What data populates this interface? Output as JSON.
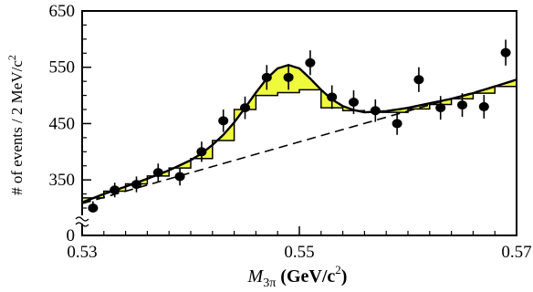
{
  "chart_data": {
    "type": "scatter",
    "xlim": [
      0.53,
      0.57
    ],
    "y_axis": {
      "break": true,
      "break_value": 300,
      "upper_range": [
        300,
        650
      ],
      "tick_values": [
        0,
        350,
        450,
        550,
        650
      ],
      "tick_labels": [
        "0",
        "350",
        "450",
        "550",
        "650"
      ]
    },
    "x_ticks": [
      0.53,
      0.55,
      0.57
    ],
    "x_tick_labels": [
      "0.53",
      "0.55",
      "0.57"
    ],
    "xlabel_main": "M",
    "xlabel_sub": "3π",
    "xlabel_unit": " (GeV/c",
    "xlabel_sup": "2",
    "xlabel_close": ")",
    "ylabel_main": "# of events / 2 MeV/c",
    "ylabel_sup": "2",
    "colors": {
      "fill": "#f0fa3c",
      "line": "#000000",
      "points": "#000000"
    },
    "points": [
      {
        "x": 0.531,
        "y": 300,
        "err": 12
      },
      {
        "x": 0.533,
        "y": 332,
        "err": 13
      },
      {
        "x": 0.535,
        "y": 342,
        "err": 14
      },
      {
        "x": 0.537,
        "y": 363,
        "err": 16
      },
      {
        "x": 0.539,
        "y": 356,
        "err": 16
      },
      {
        "x": 0.541,
        "y": 400,
        "err": 18
      },
      {
        "x": 0.543,
        "y": 455,
        "err": 20
      },
      {
        "x": 0.545,
        "y": 478,
        "err": 20
      },
      {
        "x": 0.547,
        "y": 532,
        "err": 22
      },
      {
        "x": 0.549,
        "y": 532,
        "err": 22
      },
      {
        "x": 0.551,
        "y": 558,
        "err": 22
      },
      {
        "x": 0.553,
        "y": 497,
        "err": 21
      },
      {
        "x": 0.555,
        "y": 488,
        "err": 21
      },
      {
        "x": 0.557,
        "y": 473,
        "err": 20
      },
      {
        "x": 0.559,
        "y": 450,
        "err": 20
      },
      {
        "x": 0.561,
        "y": 528,
        "err": 22
      },
      {
        "x": 0.563,
        "y": 478,
        "err": 21
      },
      {
        "x": 0.565,
        "y": 483,
        "err": 21
      },
      {
        "x": 0.567,
        "y": 480,
        "err": 21
      },
      {
        "x": 0.569,
        "y": 576,
        "err": 23
      }
    ],
    "total_fit": [
      {
        "x": 0.53,
        "y": 310
      },
      {
        "x": 0.532,
        "y": 325
      },
      {
        "x": 0.534,
        "y": 338
      },
      {
        "x": 0.536,
        "y": 352
      },
      {
        "x": 0.538,
        "y": 367
      },
      {
        "x": 0.54,
        "y": 385
      },
      {
        "x": 0.541,
        "y": 397
      },
      {
        "x": 0.542,
        "y": 412
      },
      {
        "x": 0.543,
        "y": 430
      },
      {
        "x": 0.544,
        "y": 452
      },
      {
        "x": 0.545,
        "y": 478
      },
      {
        "x": 0.546,
        "y": 505
      },
      {
        "x": 0.547,
        "y": 530
      },
      {
        "x": 0.548,
        "y": 548
      },
      {
        "x": 0.549,
        "y": 554
      },
      {
        "x": 0.55,
        "y": 548
      },
      {
        "x": 0.551,
        "y": 530
      },
      {
        "x": 0.552,
        "y": 510
      },
      {
        "x": 0.553,
        "y": 493
      },
      {
        "x": 0.554,
        "y": 481
      },
      {
        "x": 0.555,
        "y": 474
      },
      {
        "x": 0.556,
        "y": 470
      },
      {
        "x": 0.558,
        "y": 472
      },
      {
        "x": 0.56,
        "y": 478
      },
      {
        "x": 0.562,
        "y": 486
      },
      {
        "x": 0.564,
        "y": 494
      },
      {
        "x": 0.566,
        "y": 504
      },
      {
        "x": 0.568,
        "y": 516
      },
      {
        "x": 0.57,
        "y": 528
      }
    ],
    "background_fit": [
      {
        "x": 0.53,
        "y": 308
      },
      {
        "x": 0.57,
        "y": 527
      }
    ],
    "histogram": {
      "edges": [
        0.53,
        0.532,
        0.534,
        0.536,
        0.538,
        0.54,
        0.542,
        0.544,
        0.546,
        0.548,
        0.55,
        0.552,
        0.554,
        0.556,
        0.558,
        0.56,
        0.562,
        0.564,
        0.566,
        0.568,
        0.57
      ],
      "values": [
        318,
        330,
        343,
        357,
        371,
        388,
        420,
        475,
        500,
        505,
        510,
        478,
        473,
        470,
        470,
        476,
        484,
        494,
        504,
        516
      ]
    }
  }
}
